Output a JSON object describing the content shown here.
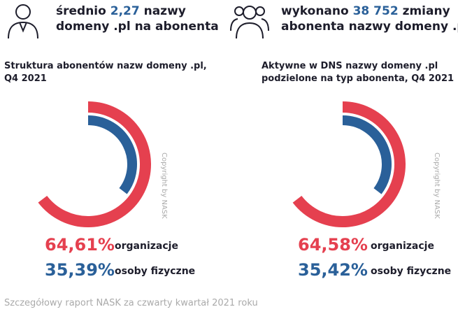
{
  "stats": [
    {
      "parts": [
        "średnio",
        "2,27",
        "nazwy"
      ],
      "line2": "domeny .pl na abonenta"
    },
    {
      "parts": [
        "wykonano",
        "38 752",
        "zmiany"
      ],
      "line2": "abonenta nazwy domeny .pl"
    }
  ],
  "chart_data": [
    {
      "type": "radial",
      "title": [
        "Struktura abonentów nazw domeny .pl,",
        "Q4 2021"
      ],
      "categories": [
        "organizacje",
        "osoby fizyczne"
      ],
      "values": [
        64.61,
        35.39
      ],
      "value_labels": [
        "64,61%",
        "35,39%"
      ],
      "colors": [
        "#e5404f",
        "#2a6099"
      ],
      "copyright": "Copyright by NASK"
    },
    {
      "type": "radial",
      "title": [
        "Aktywne w DNS nazwy domeny .pl",
        "podzielone na typ abonenta, Q4 2021"
      ],
      "categories": [
        "organizacje",
        "osoby fizyczne"
      ],
      "values": [
        64.58,
        35.42
      ],
      "value_labels": [
        "64,58%",
        "35,42%"
      ],
      "colors": [
        "#e5404f",
        "#2a6099"
      ],
      "copyright": "Copyright by NASK"
    }
  ],
  "footer": "Szczegółowy raport NASK za czwarty kwartał 2021 roku"
}
